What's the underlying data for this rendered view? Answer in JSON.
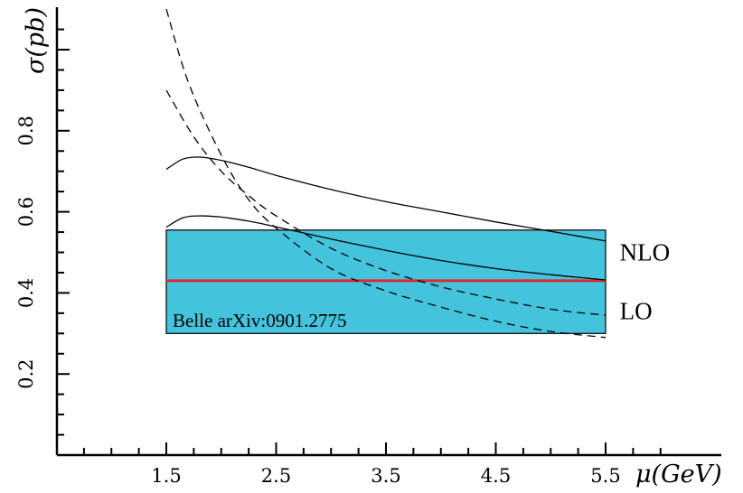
{
  "chart_data": {
    "type": "line",
    "xlabel": "μ(GeV)",
    "ylabel": "σ(pb)",
    "xlim": [
      0.5,
      6.0
    ],
    "ylim": [
      0.0,
      1.1
    ],
    "x_tick_labels": [
      "1.5",
      "2.5",
      "3.5",
      "4.5",
      "5.5"
    ],
    "x_tick_values": [
      1.5,
      2.5,
      3.5,
      4.5,
      5.5
    ],
    "y_tick_labels": [
      "0.2",
      "0.4",
      "0.6",
      "0.8"
    ],
    "y_tick_values": [
      0.2,
      0.4,
      0.6,
      0.8
    ],
    "band": {
      "label": "Belle arXiv:0901.2775",
      "x_range": [
        1.5,
        5.5
      ],
      "y_range": [
        0.3,
        0.555
      ],
      "central": 0.43,
      "fill_color": "#44c3dc",
      "central_color": "#e0282f"
    },
    "series": [
      {
        "style": "solid",
        "x": [
          1.5,
          1.65,
          1.8,
          2.0,
          2.25,
          2.5,
          3.0,
          3.5,
          4.0,
          4.5,
          5.0,
          5.5
        ],
        "values": [
          0.705,
          0.73,
          0.735,
          0.727,
          0.71,
          0.69,
          0.655,
          0.625,
          0.6,
          0.575,
          0.552,
          0.528
        ]
      },
      {
        "style": "solid",
        "x": [
          1.5,
          1.65,
          1.8,
          2.0,
          2.25,
          2.5,
          3.0,
          3.5,
          4.0,
          4.5,
          5.0,
          5.5
        ],
        "values": [
          0.562,
          0.585,
          0.59,
          0.587,
          0.577,
          0.563,
          0.533,
          0.505,
          0.48,
          0.46,
          0.445,
          0.432
        ]
      },
      {
        "style": "dashed",
        "x": [
          1.5,
          1.7,
          2.0,
          2.25,
          2.5,
          3.0,
          3.5,
          4.0,
          4.5,
          5.0,
          5.5
        ],
        "values": [
          1.1,
          0.92,
          0.74,
          0.63,
          0.56,
          0.46,
          0.405,
          0.365,
          0.33,
          0.305,
          0.29
        ]
      },
      {
        "style": "dashed",
        "x": [
          1.5,
          1.75,
          2.0,
          2.25,
          2.5,
          3.0,
          3.5,
          4.0,
          4.5,
          5.0,
          5.5
        ],
        "values": [
          0.9,
          0.785,
          0.7,
          0.64,
          0.59,
          0.51,
          0.455,
          0.415,
          0.385,
          0.36,
          0.345
        ]
      }
    ],
    "curve_labels": [
      {
        "text": "NLO",
        "x": 5.62,
        "y": 0.5
      },
      {
        "text": "LO",
        "x": 5.62,
        "y": 0.355
      }
    ]
  }
}
